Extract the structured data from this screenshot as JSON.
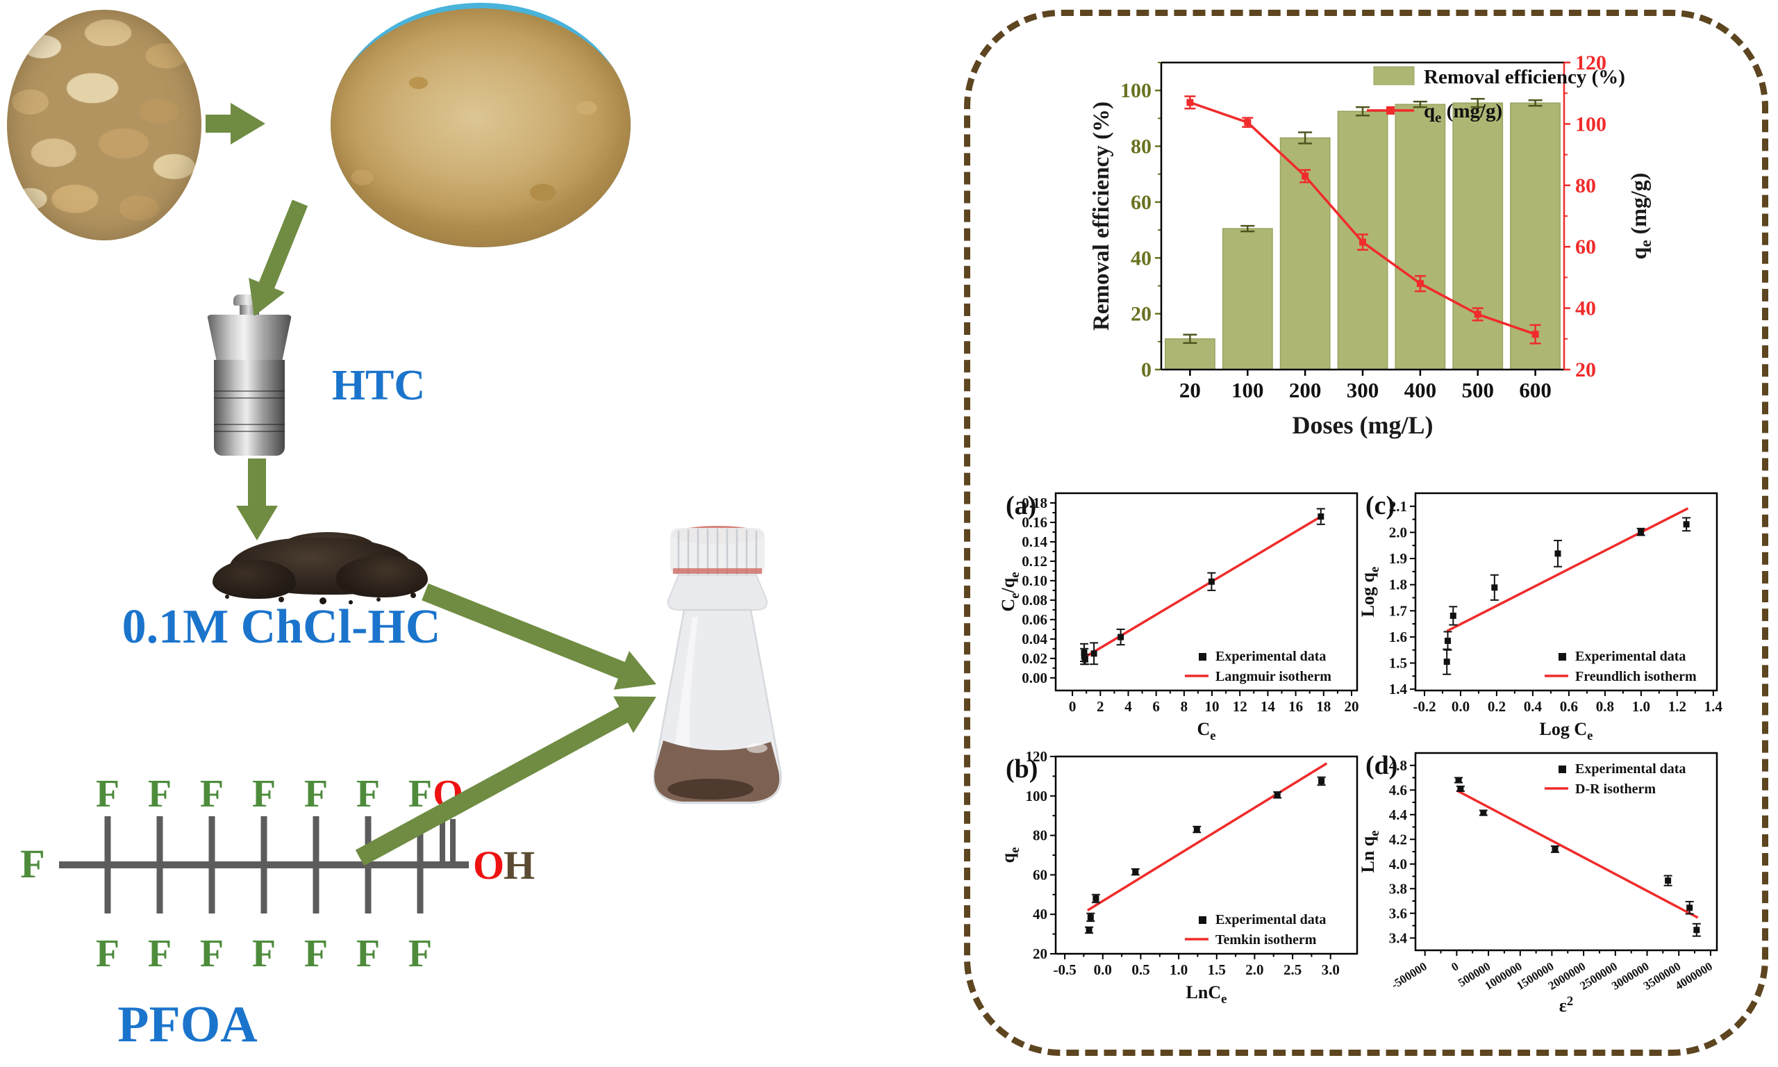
{
  "left": {
    "labels": {
      "htc": "HTC",
      "solution": "0.1M ChCl-HC",
      "molecule_name": "PFOA"
    },
    "molecule": {
      "left_atom": "F",
      "top_fluorines": [
        "F",
        "F",
        "F",
        "F",
        "F",
        "F",
        "F"
      ],
      "carbonyl_oxygen": "O",
      "bottom_fluorines": [
        "F",
        "F",
        "F",
        "F",
        "F",
        "F",
        "F"
      ],
      "hydroxyl_o": "O",
      "hydroxyl_h": "H"
    },
    "icons": [
      "peels-photo",
      "powder-photo",
      "htc-reactor",
      "hydrochar-pile",
      "flask-image",
      "arrow-peels-to-powder",
      "arrow-powder-to-reactor",
      "arrow-reactor-to-hydrochar",
      "arrow-hydrochar-to-flask",
      "arrow-pfoa-to-flask"
    ],
    "colors": {
      "label_blue": "#1b74cc",
      "fluorine_green": "#4e8c3c",
      "oxygen_red": "#ee1111",
      "hydrogen_brown": "#5c4b33",
      "bond_gray": "#5c5c5c",
      "arrow_green": "#6f8c42",
      "panel_dash_brown": "#5d4520"
    }
  },
  "chart_data": [
    {
      "id": "doses",
      "type": "bar-line",
      "categories": [
        "20",
        "100",
        "200",
        "300",
        "400",
        "500",
        "600"
      ],
      "xlabel": [
        {
          "t": "Doses (mg/L)"
        }
      ],
      "left_axis": {
        "title": [
          {
            "t": "Removal efficiency (%)"
          }
        ],
        "tick_labels": [
          "0",
          "20",
          "40",
          "60",
          "80",
          "100"
        ],
        "tick_values": [
          0,
          20,
          40,
          60,
          80,
          100
        ],
        "max": 110,
        "tick_color": "#6a711f",
        "title_color": "#1a1a1a"
      },
      "right_axis": {
        "title": [
          {
            "t": "q"
          },
          {
            "t": "e",
            "sub": true
          },
          {
            "t": " (mg/g)"
          }
        ],
        "tick_labels": [
          "20",
          "40",
          "60",
          "80",
          "100",
          "120"
        ],
        "tick_values": [
          20,
          40,
          60,
          80,
          100,
          120
        ],
        "min": 20,
        "max": 120,
        "tick_color": "#f02b2b",
        "title_color": "#1a1a1a"
      },
      "legend": [
        {
          "swatch": "bar",
          "label": [
            {
              "t": "Removal efficiency (%)"
            }
          ]
        },
        {
          "swatch": "line",
          "label": [
            {
              "t": "q"
            },
            {
              "t": "e",
              "sub": true
            },
            {
              "t": " (mg/g)"
            }
          ]
        }
      ],
      "bar_series": {
        "name": "Removal efficiency (%)",
        "color": "#aeb674",
        "edge_color": "#99a35e",
        "error_color": "#4f5520",
        "values": [
          11,
          50.5,
          83,
          92.5,
          95,
          95.5,
          95.5
        ],
        "errors": [
          1.5,
          1,
          2,
          1.5,
          1,
          1.5,
          1
        ]
      },
      "line_series": {
        "name": "qe (mg/g)",
        "color": "#f02b2b",
        "values": [
          107,
          100.5,
          83,
          61.5,
          48,
          38,
          31.5
        ],
        "errors": [
          2,
          1.5,
          2,
          2.5,
          2.5,
          2,
          3
        ]
      }
    },
    {
      "id": "a",
      "type": "scatter",
      "panel_label": "(a)",
      "xlabel": [
        {
          "t": "C"
        },
        {
          "t": "e",
          "sub": true
        }
      ],
      "ylabel": [
        {
          "t": "C"
        },
        {
          "t": "e",
          "sub": true
        },
        {
          "t": "/q"
        },
        {
          "t": "e",
          "sub": true
        }
      ],
      "xlim": [
        -1.2,
        20.4
      ],
      "ylim": [
        -0.013,
        0.19
      ],
      "xticks": {
        "values": [
          0,
          2,
          4,
          6,
          8,
          10,
          12,
          14,
          16,
          18,
          20
        ],
        "labels": [
          "0",
          "2",
          "4",
          "6",
          "8",
          "10",
          "12",
          "14",
          "16",
          "18",
          "20"
        ]
      },
      "yticks": {
        "values": [
          0,
          0.02,
          0.04,
          0.06,
          0.08,
          0.1,
          0.12,
          0.14,
          0.16,
          0.18
        ],
        "labels": [
          "0.00",
          "0.02",
          "0.04",
          "0.06",
          "0.08",
          "0.10",
          "0.12",
          "0.14",
          "0.16",
          "0.18"
        ]
      },
      "points": [
        [
          0.84,
          0.026,
          0.009
        ],
        [
          0.85,
          0.022,
          0.008
        ],
        [
          0.91,
          0.019,
          0.005
        ],
        [
          1.54,
          0.025,
          0.011
        ],
        [
          3.46,
          0.042,
          0.008
        ],
        [
          9.97,
          0.099,
          0.009
        ],
        [
          17.8,
          0.166,
          0.008
        ]
      ],
      "fit": [
        [
          0.8,
          0.0205
        ],
        [
          17.8,
          0.166
        ]
      ],
      "line_color": "#f02b2b",
      "legend": {
        "pos": "br",
        "marker_label": "Experimental data",
        "line_label": "Langmuir isotherm"
      }
    },
    {
      "id": "c",
      "type": "scatter",
      "panel_label": "(c)",
      "xlabel": [
        {
          "t": "Log C"
        },
        {
          "t": "e",
          "sub": true
        }
      ],
      "ylabel": [
        {
          "t": "Log q"
        },
        {
          "t": "e",
          "sub": true
        }
      ],
      "xlim": [
        -0.25,
        1.42
      ],
      "ylim": [
        1.395,
        2.15
      ],
      "xticks": {
        "values": [
          -0.2,
          0,
          0.2,
          0.4,
          0.6,
          0.8,
          1.0,
          1.2,
          1.4
        ],
        "labels": [
          "-0.2",
          "0.0",
          "0.2",
          "0.4",
          "0.6",
          "0.8",
          "1.0",
          "1.2",
          "1.4"
        ]
      },
      "yticks": {
        "values": [
          1.4,
          1.5,
          1.6,
          1.7,
          1.8,
          1.9,
          2.0,
          2.1
        ],
        "labels": [
          "1.4",
          "1.5",
          "1.6",
          "1.7",
          "1.8",
          "1.9",
          "2.0",
          "2.1"
        ]
      },
      "points": [
        [
          -0.076,
          1.505,
          0.048
        ],
        [
          -0.071,
          1.585,
          0.035
        ],
        [
          -0.041,
          1.681,
          0.035
        ],
        [
          0.188,
          1.789,
          0.048
        ],
        [
          0.539,
          1.919,
          0.05
        ],
        [
          0.999,
          2.002,
          0.013
        ],
        [
          1.251,
          2.031,
          0.025
        ]
      ],
      "fit": [
        [
          -0.076,
          1.622
        ],
        [
          1.26,
          2.092
        ]
      ],
      "line_color": "#f02b2b",
      "legend": {
        "pos": "br",
        "marker_label": "Experimental data",
        "line_label": "Freundlich isotherm"
      }
    },
    {
      "id": "b",
      "type": "scatter",
      "panel_label": "(b)",
      "xlabel": [
        {
          "t": "LnC"
        },
        {
          "t": "e",
          "sub": true
        }
      ],
      "ylabel": [
        {
          "t": "q"
        },
        {
          "t": "e",
          "sub": true
        }
      ],
      "xlim": [
        -0.62,
        3.35
      ],
      "ylim": [
        20,
        120
      ],
      "xticks": {
        "values": [
          -0.5,
          0,
          0.5,
          1.0,
          1.5,
          2.0,
          2.5,
          3.0
        ],
        "labels": [
          "-0.5",
          "0.0",
          "0.5",
          "1.0",
          "1.5",
          "2.0",
          "2.5",
          "3.0"
        ]
      },
      "yticks": {
        "values": [
          20,
          40,
          60,
          80,
          100,
          120
        ],
        "labels": [
          "20",
          "40",
          "60",
          "80",
          "100",
          "120"
        ]
      },
      "points": [
        [
          -0.18,
          32,
          1.5
        ],
        [
          -0.16,
          38.5,
          2
        ],
        [
          -0.09,
          48,
          2
        ],
        [
          0.43,
          61.5,
          1.5
        ],
        [
          1.24,
          83,
          1.5
        ],
        [
          2.3,
          100.5,
          1.5
        ],
        [
          2.88,
          107.5,
          2
        ]
      ],
      "fit": [
        [
          -0.2,
          42
        ],
        [
          2.95,
          116.5
        ]
      ],
      "line_color": "#f02b2b",
      "legend": {
        "pos": "br",
        "marker_label": "Experimental data",
        "line_label": "Temkin isotherm"
      }
    },
    {
      "id": "d",
      "type": "scatter",
      "panel_label": "(d)",
      "tall": true,
      "xlabel": [
        {
          "t": "ε"
        },
        {
          "t": "2",
          "sup": true
        }
      ],
      "ylabel": [
        {
          "t": "Ln q"
        },
        {
          "t": "e",
          "sub": true
        }
      ],
      "xlim": [
        -650000,
        4100000
      ],
      "ylim": [
        3.3,
        4.9
      ],
      "xticks": {
        "values": [
          -500000,
          0,
          500000,
          1000000,
          1500000,
          2000000,
          2500000,
          3000000,
          3500000,
          4000000
        ],
        "labels": [
          "-500000",
          "0",
          "500000",
          "1000000",
          "1500000",
          "2000000",
          "2500000",
          "3000000",
          "3500000",
          "4000000"
        ],
        "rotate": -32
      },
      "yticks": {
        "values": [
          3.4,
          3.6,
          3.8,
          4.0,
          4.2,
          4.4,
          4.6,
          4.8
        ],
        "labels": [
          "3.4",
          "3.6",
          "3.8",
          "4.0",
          "4.2",
          "4.4",
          "4.6",
          "4.8"
        ]
      },
      "points": [
        [
          30000,
          4.68,
          0.02
        ],
        [
          60000,
          4.61,
          0.02
        ],
        [
          420000,
          4.415,
          0.02
        ],
        [
          1550000,
          4.12,
          0.025
        ],
        [
          3330000,
          3.865,
          0.04
        ],
        [
          3670000,
          3.645,
          0.05
        ],
        [
          3780000,
          3.465,
          0.05
        ]
      ],
      "fit": [
        [
          0,
          4.597
        ],
        [
          3800000,
          3.565
        ]
      ],
      "line_color": "#f02b2b",
      "legend": {
        "pos": "tr",
        "marker_label": "Experimental data",
        "line_label": "D-R isotherm"
      }
    }
  ]
}
